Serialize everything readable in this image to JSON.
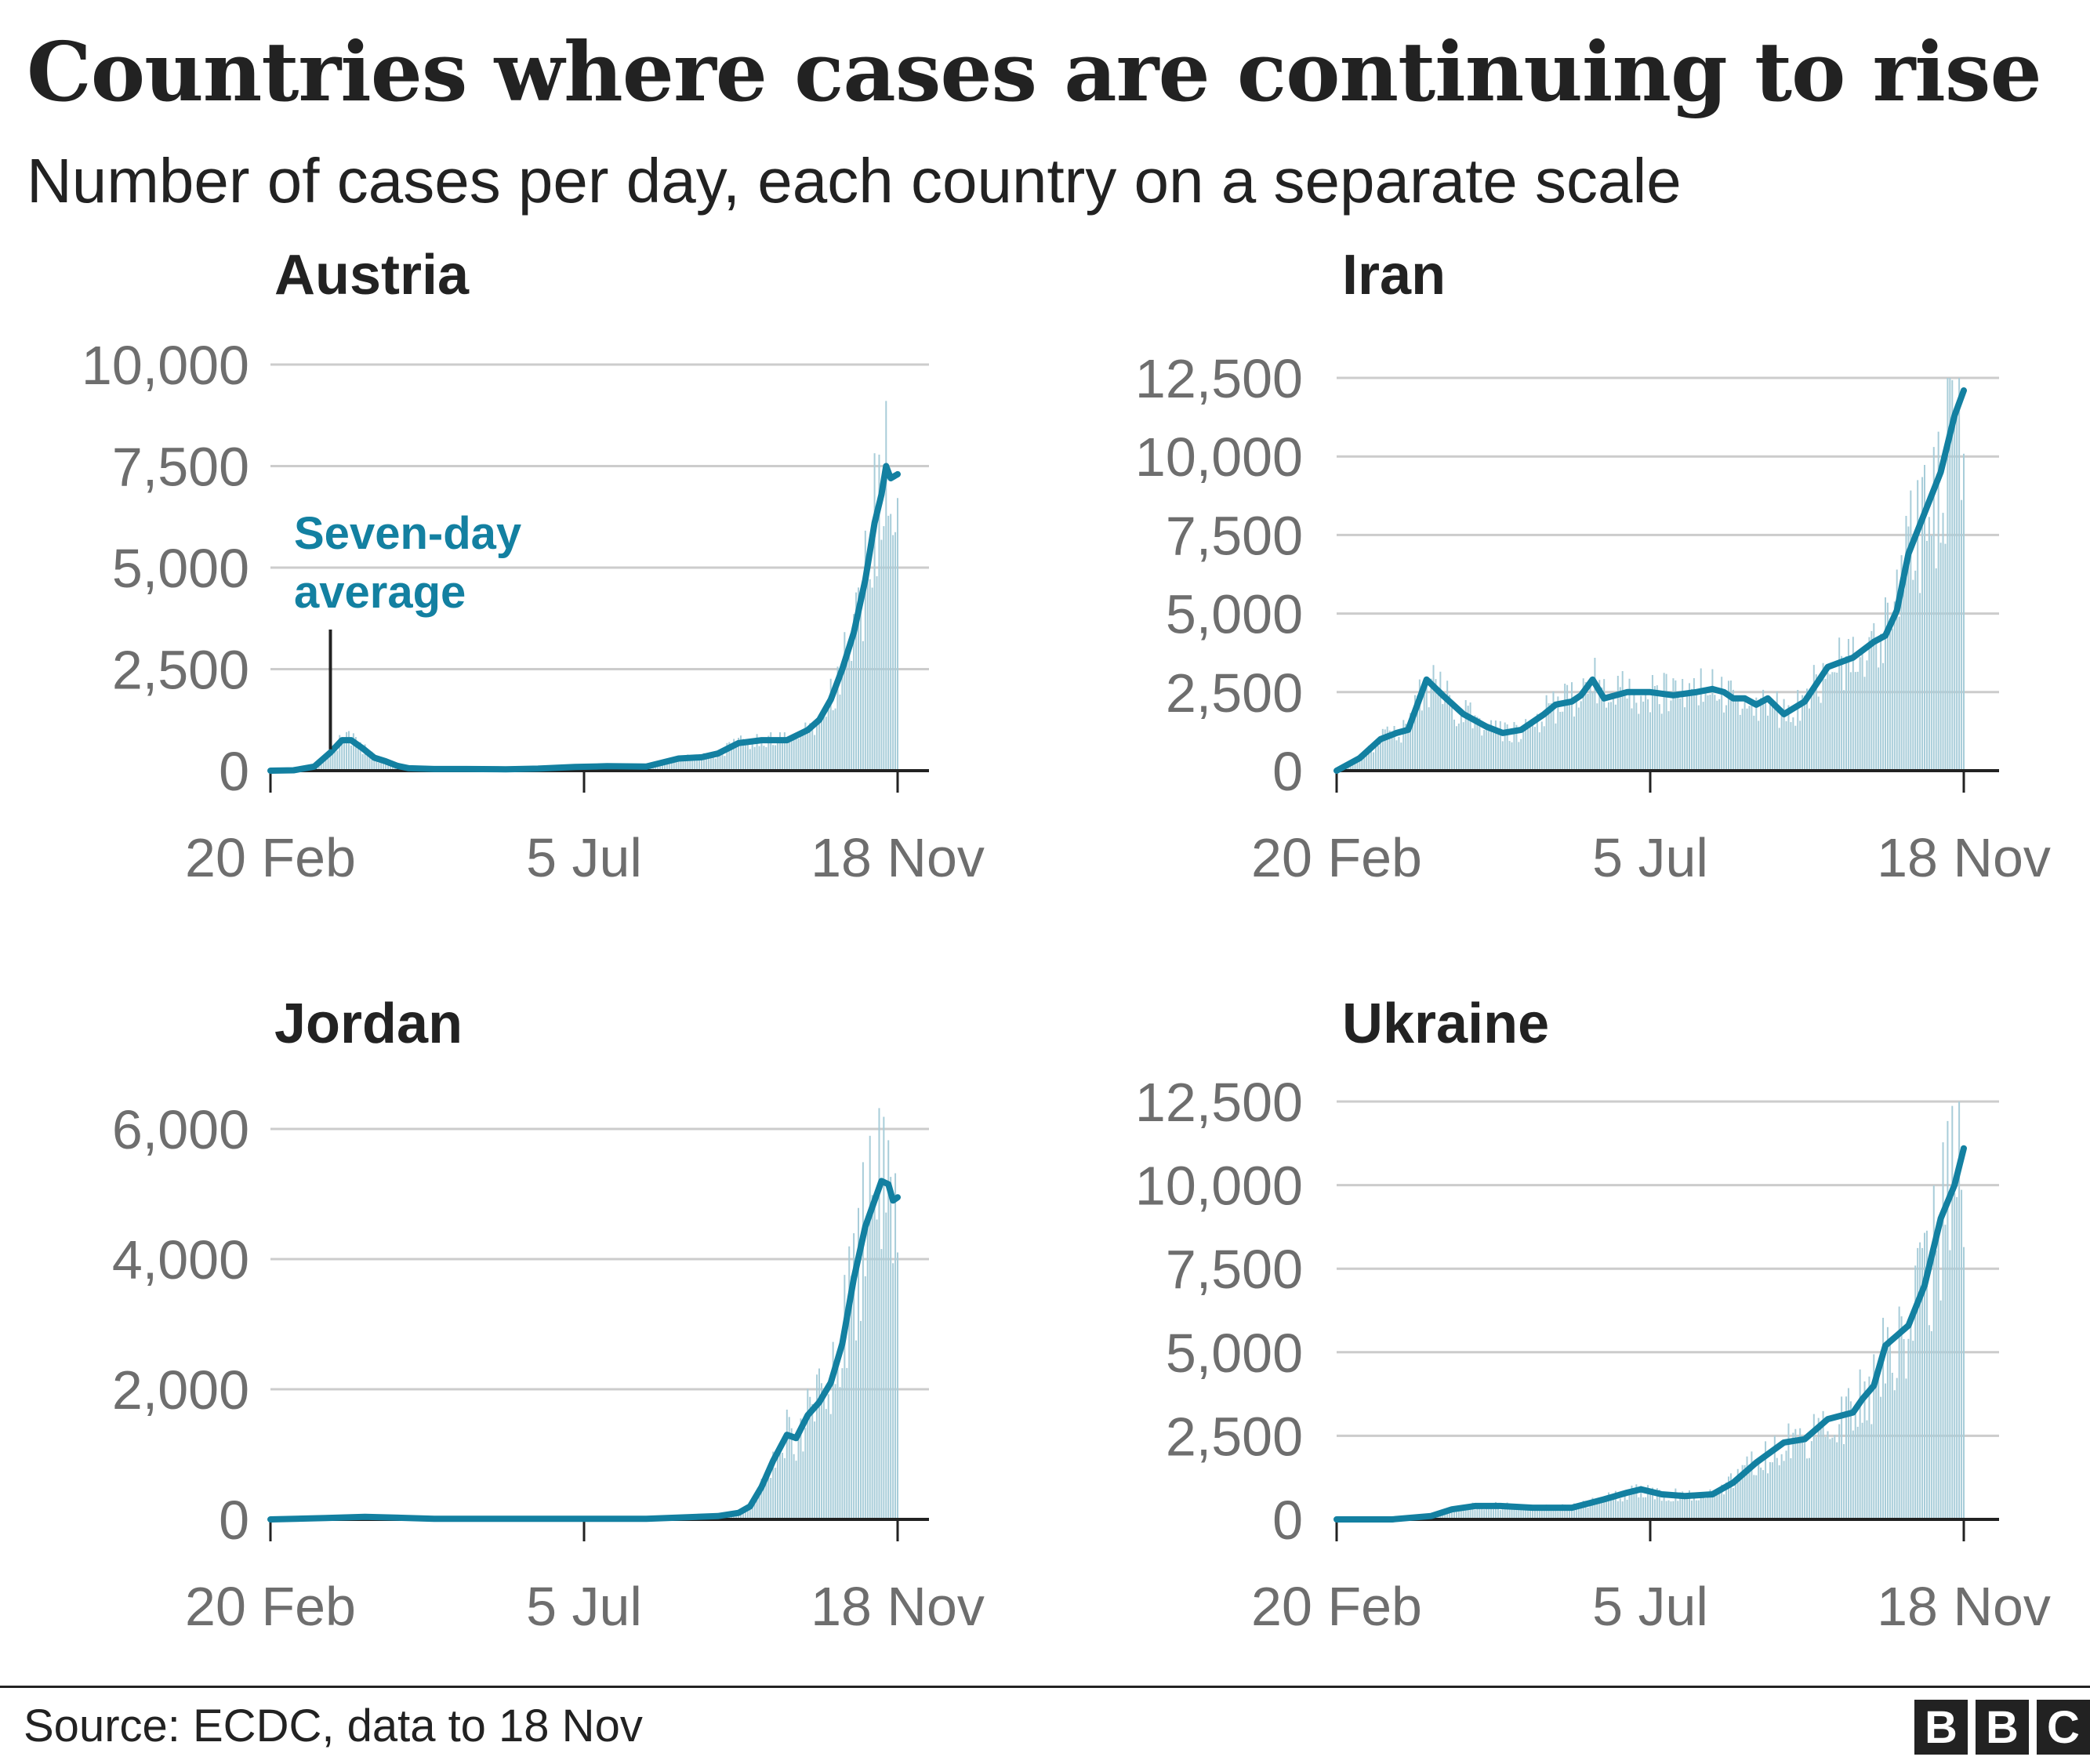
{
  "title": "Countries where cases are continuing to rise",
  "subtitle": "Number of cases per day, each country on a separate scale",
  "source": "Source: ECDC, data to 18 Nov",
  "logo": [
    "B",
    "B",
    "C"
  ],
  "colors": {
    "line": "#1380a1",
    "bars": "#a8cdd9",
    "grid": "#cccccc",
    "axis": "#222222",
    "text": "#222222",
    "tick": "#6e6e6e"
  },
  "chart_data": [
    {
      "type": "line",
      "title": "Austria",
      "x_ticks": [
        "20 Feb",
        "5 Jul",
        "18 Nov"
      ],
      "y_ticks": [
        "0",
        "2,500",
        "5,000",
        "7,500",
        "10,000"
      ],
      "ylim": [
        0,
        10000
      ],
      "annotation": {
        "line1": "Seven-day",
        "line2": "average"
      },
      "series": [
        {
          "x": [
            "20 Feb",
            "1 Mar",
            "10 Mar",
            "17 Mar",
            "22 Mar",
            "26 Mar",
            "31 Mar",
            "5 Apr",
            "10 Apr",
            "15 Apr",
            "20 Apr",
            "1 May",
            "15 May",
            "1 Jun",
            "15 Jun",
            "1 Jul",
            "15 Jul",
            "1 Aug",
            "15 Aug",
            "25 Aug",
            "1 Sep",
            "10 Sep",
            "20 Sep",
            "1 Oct",
            "10 Oct",
            "15 Oct",
            "20 Oct",
            "25 Oct",
            "30 Oct",
            "4 Nov",
            "8 Nov",
            "11 Nov",
            "13 Nov",
            "15 Nov",
            "18 Nov"
          ],
          "y": [
            0,
            10,
            100,
            450,
            750,
            750,
            550,
            320,
            230,
            120,
            60,
            40,
            40,
            35,
            50,
            90,
            110,
            100,
            300,
            330,
            420,
            680,
            750,
            750,
            1000,
            1250,
            1750,
            2500,
            3400,
            4700,
            6100,
            6800,
            7500,
            7200,
            7300
          ]
        }
      ]
    },
    {
      "type": "line",
      "title": "Iran",
      "x_ticks": [
        "20 Feb",
        "5 Jul",
        "18 Nov"
      ],
      "y_ticks": [
        "0",
        "2,500",
        "5,000",
        "7,500",
        "10,000",
        "12,500"
      ],
      "ylim": [
        0,
        12500
      ],
      "series": [
        {
          "x": [
            "20 Feb",
            "1 Mar",
            "10 Mar",
            "17 Mar",
            "22 Mar",
            "30 Mar",
            "6 Apr",
            "15 Apr",
            "25 Apr",
            "2 May",
            "10 May",
            "20 May",
            "25 May",
            "1 Jun",
            "5 Jun",
            "10 Jun",
            "15 Jun",
            "25 Jun",
            "5 Jul",
            "15 Jul",
            "25 Jul",
            "1 Aug",
            "6 Aug",
            "10 Aug",
            "15 Aug",
            "20 Aug",
            "25 Aug",
            "1 Sep",
            "10 Sep",
            "20 Sep",
            "1 Oct",
            "10 Oct",
            "15 Oct",
            "20 Oct",
            "25 Oct",
            "1 Nov",
            "8 Nov",
            "14 Nov",
            "18 Nov"
          ],
          "y": [
            0,
            400,
            1000,
            1200,
            1300,
            2900,
            2400,
            1800,
            1400,
            1200,
            1300,
            1800,
            2100,
            2200,
            2400,
            2900,
            2300,
            2500,
            2500,
            2400,
            2500,
            2600,
            2500,
            2300,
            2300,
            2100,
            2300,
            1800,
            2200,
            3300,
            3600,
            4100,
            4300,
            5100,
            6900,
            8200,
            9500,
            11300,
            12100
          ]
        }
      ]
    },
    {
      "type": "line",
      "title": "Jordan",
      "x_ticks": [
        "20 Feb",
        "5 Jul",
        "18 Nov"
      ],
      "y_ticks": [
        "0",
        "2,000",
        "4,000",
        "6,000"
      ],
      "ylim": [
        0,
        6500
      ],
      "series": [
        {
          "x": [
            "20 Feb",
            "15 Mar",
            "1 Apr",
            "1 May",
            "1 Jun",
            "1 Jul",
            "1 Aug",
            "1 Sep",
            "10 Sep",
            "15 Sep",
            "20 Sep",
            "25 Sep",
            "1 Oct",
            "5 Oct",
            "10 Oct",
            "15 Oct",
            "20 Oct",
            "25 Oct",
            "30 Oct",
            "4 Nov",
            "8 Nov",
            "11 Nov",
            "14 Nov",
            "16 Nov",
            "18 Nov"
          ],
          "y": [
            0,
            20,
            40,
            10,
            10,
            10,
            10,
            50,
            100,
            200,
            500,
            900,
            1300,
            1250,
            1600,
            1800,
            2100,
            2700,
            3700,
            4500,
            4900,
            5200,
            5150,
            4900,
            4950
          ]
        }
      ]
    },
    {
      "type": "line",
      "title": "Ukraine",
      "x_ticks": [
        "20 Feb",
        "5 Jul",
        "18 Nov"
      ],
      "y_ticks": [
        "0",
        "2,500",
        "5,000",
        "7,500",
        "10,000",
        "12,500"
      ],
      "ylim": [
        0,
        12500
      ],
      "series": [
        {
          "x": [
            "20 Feb",
            "15 Mar",
            "1 Apr",
            "10 Apr",
            "20 Apr",
            "1 May",
            "15 May",
            "1 Jun",
            "15 Jun",
            "25 Jun",
            "1 Jul",
            "10 Jul",
            "20 Jul",
            "1 Aug",
            "10 Aug",
            "20 Aug",
            "1 Sep",
            "10 Sep",
            "20 Sep",
            "1 Oct",
            "5 Oct",
            "10 Oct",
            "15 Oct",
            "20 Oct",
            "25 Oct",
            "1 Nov",
            "8 Nov",
            "14 Nov",
            "18 Nov"
          ],
          "y": [
            0,
            0,
            100,
            300,
            400,
            400,
            350,
            350,
            600,
            800,
            900,
            750,
            700,
            750,
            1100,
            1700,
            2300,
            2400,
            3000,
            3200,
            3600,
            4000,
            5200,
            5500,
            5800,
            7000,
            9000,
            10000,
            11100
          ]
        }
      ]
    }
  ]
}
